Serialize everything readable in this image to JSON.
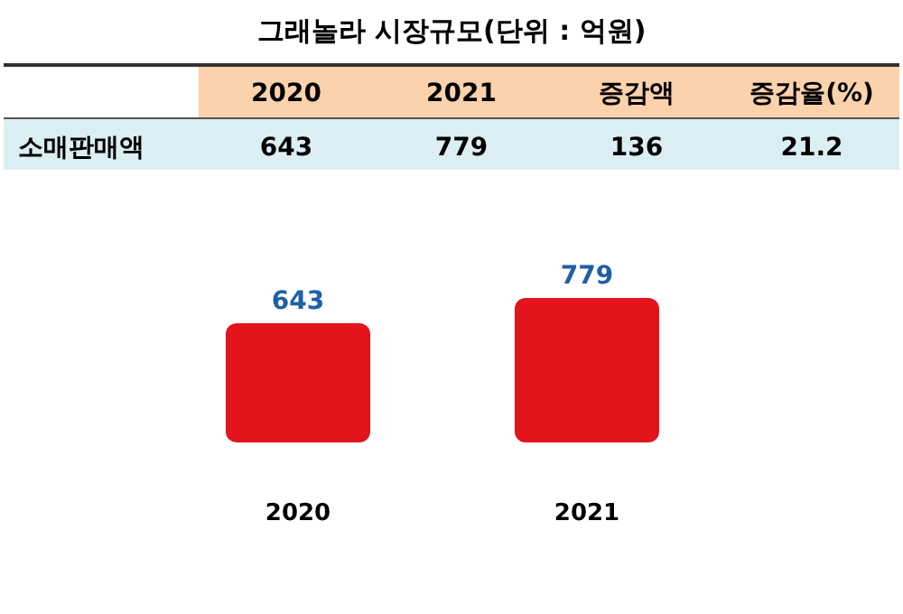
{
  "chart_data": {
    "type": "bar",
    "title": "그래놀라 시장규모(단위 : 억원)",
    "categories": [
      "2020",
      "2021"
    ],
    "values": [
      643,
      779
    ],
    "color": "#e3141c",
    "value_labels": [
      "643",
      "779"
    ],
    "annotations": [
      "소매판매액",
      "643",
      "779",
      "증감액",
      "136",
      "증감율(%)",
      "21.2"
    ]
  }
}
